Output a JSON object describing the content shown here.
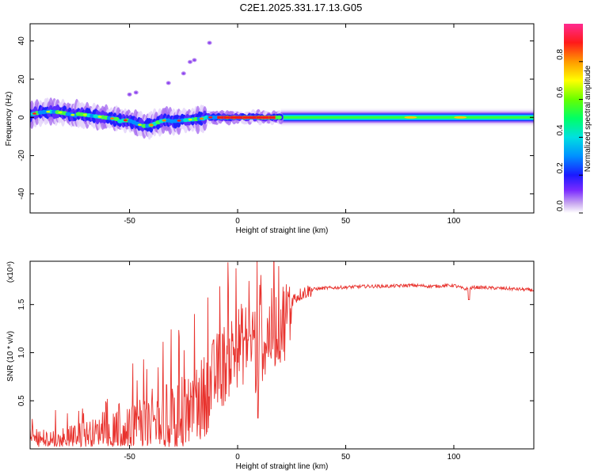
{
  "title": "C2E1.2025.331.17.13.G05",
  "chart_data": [
    {
      "type": "heatmap",
      "name": "spectrogram",
      "xlabel": "Height of straight line (km)",
      "ylabel": "Frequency (Hz)",
      "xlim": [
        -96,
        137
      ],
      "ylim": [
        -50,
        49
      ],
      "xticks": [
        -50,
        0,
        50,
        100
      ],
      "yticks": [
        -40,
        -20,
        0,
        20,
        40
      ],
      "xtick_labels": [
        "-50",
        "0",
        "50",
        "100"
      ],
      "ytick_labels": [
        "-40",
        "-20",
        "0",
        "20",
        "40"
      ],
      "band": {
        "center_hz": 0,
        "description": "dominant energy near 0 Hz across heights"
      },
      "scatter_blobs": [
        {
          "x": -50,
          "y": 12
        },
        {
          "x": -47,
          "y": 13
        },
        {
          "x": -32,
          "y": 18
        },
        {
          "x": -25,
          "y": 23
        },
        {
          "x": -22,
          "y": 29
        },
        {
          "x": -20,
          "y": 30
        },
        {
          "x": -13,
          "y": 39
        }
      ],
      "colorbar": {
        "label": "Normalized spectral amplitude",
        "range": [
          0,
          1
        ],
        "ticks": [
          0.0,
          0.2,
          0.4,
          0.6,
          0.8
        ],
        "tick_labels": [
          "0.0",
          "0.2",
          "0.4",
          "0.6",
          "0.8"
        ]
      }
    },
    {
      "type": "line",
      "name": "snr",
      "xlabel": "Height of straight line (km)",
      "ylabel": "SNR (10 * v/v)",
      "multiplier": "(x10⁴)",
      "xlim": [
        -96,
        137
      ],
      "ylim": [
        0.0,
        1.95
      ],
      "xticks": [
        -50,
        0,
        50,
        100
      ],
      "yticks": [
        0.5,
        1.0,
        1.5
      ],
      "xtick_labels": [
        "-50",
        "0",
        "50",
        "100"
      ],
      "ytick_labels": [
        "0.5",
        "1.0",
        "1.5"
      ],
      "color": "#e8322d",
      "trend": {
        "x": [
          -96,
          -90,
          -80,
          -70,
          -60,
          -50,
          -40,
          -30,
          -20,
          -15,
          -10,
          -5,
          0,
          5,
          8,
          9,
          10,
          12,
          15,
          20,
          25,
          30,
          35,
          40,
          50,
          60,
          70,
          80,
          90,
          100,
          105,
          110,
          120,
          130,
          137
        ],
        "y": [
          0.14,
          0.12,
          0.13,
          0.2,
          0.24,
          0.3,
          0.36,
          0.44,
          0.55,
          0.7,
          0.9,
          1.05,
          1.2,
          1.25,
          1.3,
          0.35,
          1.45,
          1.2,
          1.35,
          1.45,
          1.55,
          1.62,
          1.66,
          1.67,
          1.68,
          1.69,
          1.69,
          1.7,
          1.69,
          1.7,
          1.66,
          1.68,
          1.67,
          1.66,
          1.65
        ]
      }
    }
  ]
}
